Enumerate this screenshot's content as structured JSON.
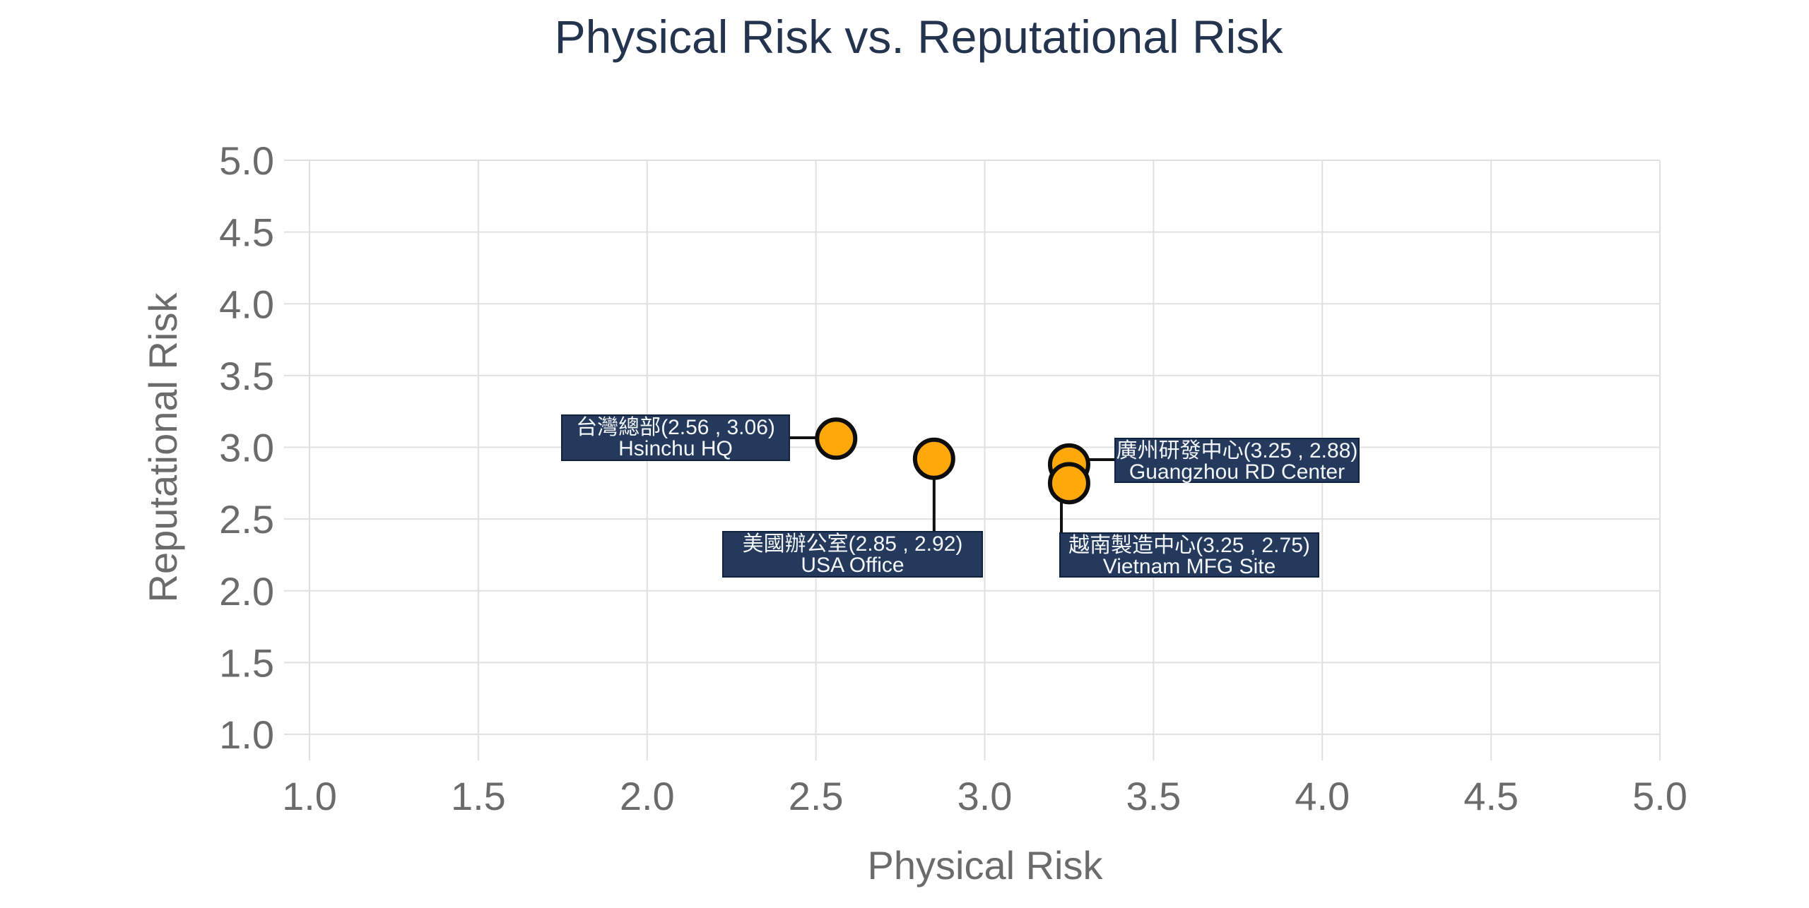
{
  "chart_data": {
    "type": "scatter",
    "title": "Physical Risk vs. Reputational Risk",
    "xlabel": "Physical Risk",
    "ylabel": "Reputational Risk",
    "xlim": [
      1.0,
      5.0
    ],
    "ylim": [
      1.0,
      5.0
    ],
    "tick_step": 0.5,
    "x_ticks": [
      "1.0",
      "1.5",
      "2.0",
      "2.5",
      "3.0",
      "3.5",
      "4.0",
      "4.5",
      "5.0"
    ],
    "y_ticks": [
      "5.0",
      "4.5",
      "4.0",
      "3.5",
      "3.0",
      "2.5",
      "2.0",
      "1.5",
      "1.0"
    ],
    "grid": true,
    "legend": "none",
    "points": [
      {
        "name_zh": "台灣總部",
        "name_en": "Hsinchu HQ",
        "x": 2.56,
        "y": 3.06,
        "label_line1": "台灣總部(2.56 , 3.06)",
        "label_line2": "Hsinchu HQ",
        "label_side": "left"
      },
      {
        "name_zh": "美國辦公室",
        "name_en": "USA Office",
        "x": 2.85,
        "y": 2.92,
        "label_line1": "美國辦公室(2.85 , 2.92)",
        "label_line2": "USA Office",
        "label_side": "below-marker"
      },
      {
        "name_zh": "廣州研發中心",
        "name_en": "Guangzhou RD Center",
        "x": 3.25,
        "y": 2.88,
        "label_line1": "廣州研發中心(3.25 , 2.88)",
        "label_line2": "Guangzhou RD Center",
        "label_side": "right"
      },
      {
        "name_zh": "越南製造中心",
        "name_en": "Vietnam MFG Site",
        "x": 3.25,
        "y": 2.75,
        "label_line1": "越南製造中心(3.25 , 2.75)",
        "label_line2": "Vietnam MFG Site",
        "label_side": "below-edge"
      }
    ],
    "colors": {
      "marker_fill": "#FFA80A",
      "marker_stroke": "#0D0D0D",
      "label_bg": "#24395B",
      "label_text": "#F4F7FA",
      "grid": "#E0E0E0",
      "axis_text": "#6B6B6B",
      "title_text": "#24344E",
      "background": "#FFFFFF"
    }
  }
}
